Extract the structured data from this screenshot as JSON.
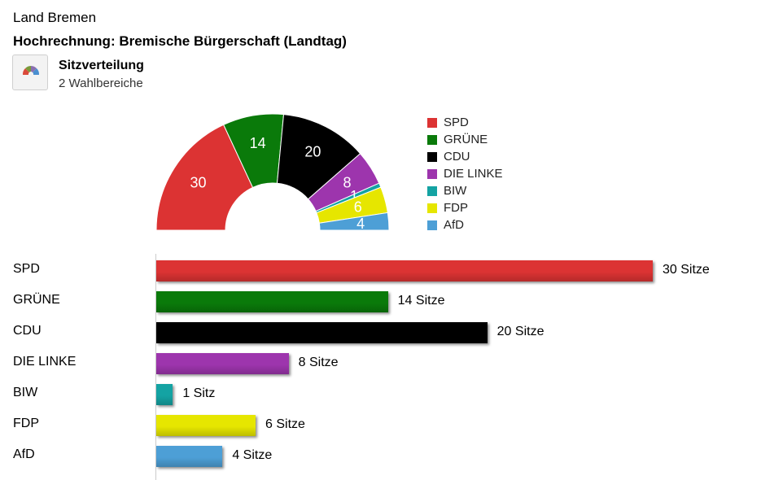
{
  "header": {
    "region": "Land Bremen",
    "heading": "Hochrechnung: Bremische Bürgerschaft (Landtag)"
  },
  "section": {
    "icon": "parliament-seats-icon",
    "title": "Sitzverteilung",
    "subtitle": "2 Wahlbereiche"
  },
  "chart_data": [
    {
      "type": "pie",
      "subtype": "semicircle-seat-distribution",
      "categories": [
        "SPD",
        "GRÜNE",
        "CDU",
        "DIE LINKE",
        "BIW",
        "FDP",
        "AfD"
      ],
      "values": [
        30,
        14,
        20,
        8,
        1,
        6,
        4
      ],
      "colors": [
        "#dc3333",
        "#0a7a0a",
        "#000000",
        "#9d35ad",
        "#14a3a3",
        "#e6e600",
        "#4d9fd6"
      ],
      "legend": "right"
    },
    {
      "type": "bar",
      "orientation": "horizontal",
      "categories": [
        "SPD",
        "GRÜNE",
        "CDU",
        "DIE LINKE",
        "BIW",
        "FDP",
        "AfD"
      ],
      "values": [
        30,
        14,
        20,
        8,
        1,
        6,
        4
      ],
      "value_labels": [
        "30 Sitze",
        "14 Sitze",
        "20 Sitze",
        "8 Sitze",
        "1 Sitz",
        "6 Sitze",
        "4 Sitze"
      ],
      "colors": [
        "#dc3333",
        "#0a7a0a",
        "#000000",
        "#9d35ad",
        "#14a3a3",
        "#e6e600",
        "#4d9fd6"
      ],
      "xlim": [
        0,
        30
      ]
    }
  ]
}
